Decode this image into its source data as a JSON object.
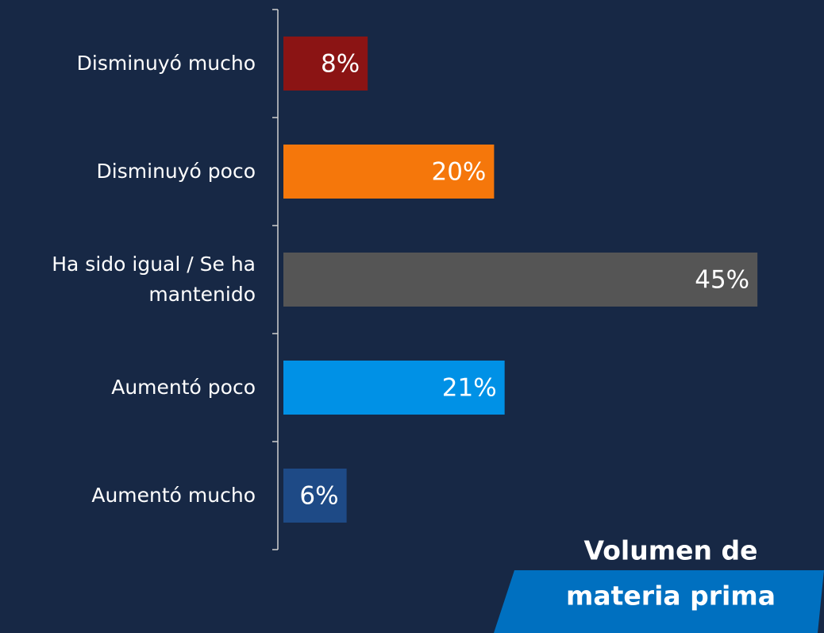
{
  "chart_data": {
    "type": "bar",
    "orientation": "horizontal",
    "title": [
      "Volumen de",
      "materia prima"
    ],
    "categories": [
      "Disminuyó mucho",
      "Disminuyó poco",
      "Ha sido igual / Se ha mantenido",
      "Aumentó poco",
      "Aumentó mucho"
    ],
    "values": [
      8,
      20,
      45,
      21,
      6
    ],
    "value_labels": [
      "8%",
      "20%",
      "45%",
      "21%",
      "6%"
    ],
    "colors": [
      "#8b1414",
      "#f5770b",
      "#555555",
      "#0091e6",
      "#1e4a86"
    ]
  }
}
